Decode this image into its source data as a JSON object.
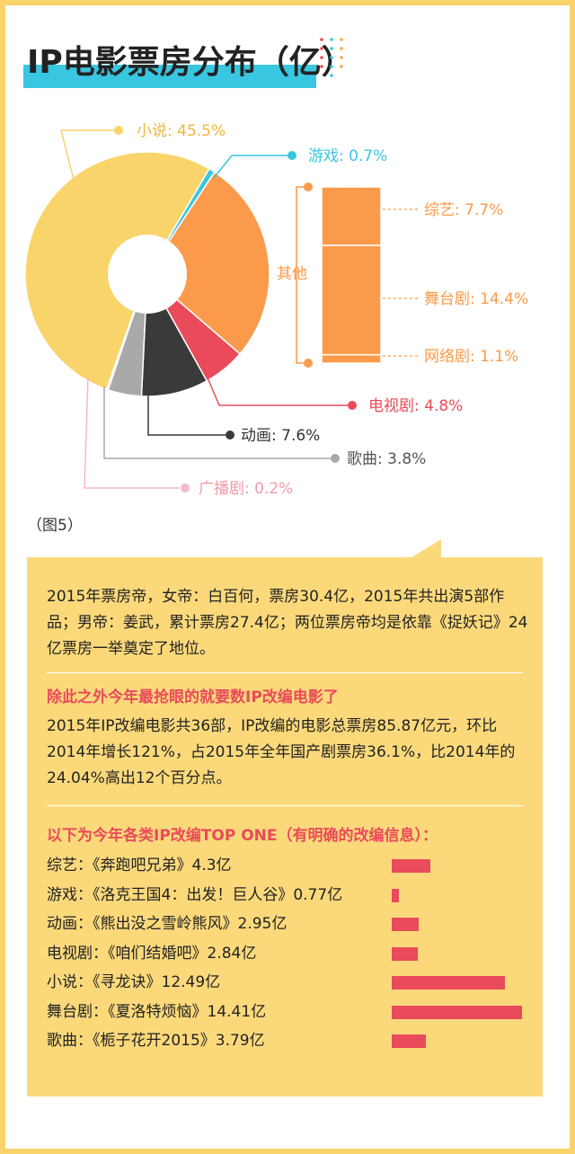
{
  "title": "IP电影票房分布（亿）",
  "figure_label": "（图5）",
  "colors": {
    "frame": "#f9d46a",
    "title_bar": "#39c6e0",
    "novel": "#f9d46a",
    "game": "#39c6e0",
    "other": "#fb9a4a",
    "tv": "#e94b5a",
    "animation": "#3a3a3a",
    "music": "#a9a9a9",
    "radio": "#f7b9c4",
    "highlight_text": "#e94b5a",
    "panel": "#fbd97b"
  },
  "chart_data": {
    "type": "pie",
    "title": "IP电影票房分布（亿）",
    "donut": true,
    "slices": [
      {
        "name": "小说",
        "label": "小说: 45.5%",
        "value": 45.5,
        "color": "#f9d46a"
      },
      {
        "name": "游戏",
        "label": "游戏: 0.7%",
        "value": 0.7,
        "color": "#39c6e0"
      },
      {
        "name": "其他",
        "label": "其他",
        "value": 23.2,
        "color": "#fb9a4a"
      },
      {
        "name": "电视剧",
        "label": "电视剧: 4.8%",
        "value": 4.8,
        "color": "#e94b5a"
      },
      {
        "name": "动画",
        "label": "动画: 7.6%",
        "value": 7.6,
        "color": "#3a3a3a"
      },
      {
        "name": "歌曲",
        "label": "歌曲: 3.8%",
        "value": 3.8,
        "color": "#a9a9a9"
      },
      {
        "name": "广播剧",
        "label": "广播剧: 0.2%",
        "value": 0.2,
        "color": "#f7b9c4"
      }
    ],
    "other_breakdown": [
      {
        "name": "综艺",
        "label": "综艺: 7.7%",
        "value": 7.7
      },
      {
        "name": "舞台剧",
        "label": "舞台剧: 14.4%",
        "value": 14.4
      },
      {
        "name": "网络剧",
        "label": "网络剧: 1.1%",
        "value": 1.1
      }
    ]
  },
  "panel": {
    "para1": "2015年票房帝，女帝：白百何，票房30.4亿，2015年共出演5部作品；男帝：姜武，累计票房27.4亿；两位票房帝均是依靠《捉妖记》24亿票房一举奠定了地位。",
    "highlight1": "除此之外今年最抢眼的就要数IP改编电影了",
    "para2": "2015年IP改编电影共36部，IP改编的电影总票房85.87亿元，环比2014年增长121%，占2015年全年国产剧票房36.1%，比2014年的24.04%高出12个百分点。",
    "highlight2": "以下为今年各类IP改编TOP ONE（有明确的改编信息）：",
    "top_list": [
      {
        "label": "综艺：《奔跑吧兄弟》4.3亿",
        "value": 4.3
      },
      {
        "label": "游戏：《洛克王国4：出发！巨人谷》0.77亿",
        "value": 0.77
      },
      {
        "label": "动画：《熊出没之雪岭熊风》2.95亿",
        "value": 2.95
      },
      {
        "label": "电视剧：《咱们结婚吧》2.84亿",
        "value": 2.84
      },
      {
        "label": "小说：《寻龙诀》12.49亿",
        "value": 12.49
      },
      {
        "label": "舞台剧：《夏洛特烦恼》14.41亿",
        "value": 14.41
      },
      {
        "label": "歌曲：《栀子花开2015》3.79亿",
        "value": 3.79
      }
    ]
  }
}
